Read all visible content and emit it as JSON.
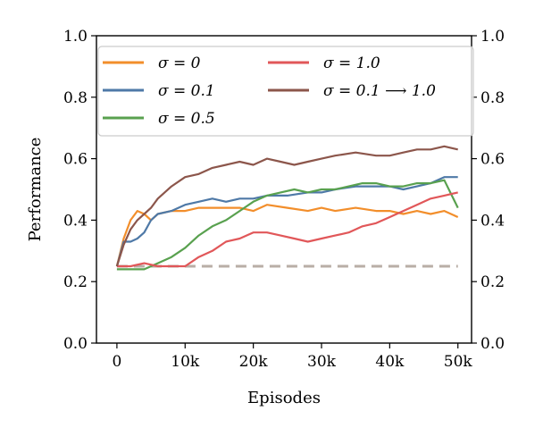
{
  "chart_data": {
    "type": "line",
    "xlabel": "Episodes",
    "ylabel": "Performance",
    "xlim": [
      -3000,
      52000
    ],
    "ylim": [
      0.0,
      1.0
    ],
    "x_ticks": [
      0,
      10000,
      20000,
      30000,
      40000,
      50000
    ],
    "x_tick_labels": [
      "0",
      "10k",
      "20k",
      "30k",
      "40k",
      "50k"
    ],
    "y_ticks": [
      0.0,
      0.2,
      0.4,
      0.6,
      0.8,
      1.0
    ],
    "y_tick_labels": [
      "0.0",
      "0.2",
      "0.4",
      "0.6",
      "0.8",
      "1.0"
    ],
    "right_y_tick_labels": [
      "0.0",
      "0.2",
      "0.4",
      "0.6",
      "0.8",
      "1.0"
    ],
    "grid": false,
    "legend_position": "top",
    "series": [
      {
        "name": "σ = 0",
        "color": "#f28e2b",
        "x": [
          0,
          1000,
          2000,
          3000,
          4000,
          5000,
          6000,
          8000,
          10000,
          12000,
          15000,
          18000,
          20000,
          22000,
          25000,
          28000,
          30000,
          32000,
          35000,
          38000,
          40000,
          42000,
          44000,
          46000,
          48000,
          50000
        ],
        "y": [
          0.25,
          0.34,
          0.4,
          0.43,
          0.42,
          0.4,
          0.42,
          0.43,
          0.43,
          0.44,
          0.44,
          0.44,
          0.43,
          0.45,
          0.44,
          0.43,
          0.44,
          0.43,
          0.44,
          0.43,
          0.43,
          0.42,
          0.43,
          0.42,
          0.43,
          0.41
        ]
      },
      {
        "name": "σ = 0.1",
        "color": "#4e79a7",
        "x": [
          0,
          1000,
          2000,
          3000,
          4000,
          5000,
          6000,
          8000,
          10000,
          12000,
          14000,
          16000,
          18000,
          20000,
          22000,
          25000,
          28000,
          30000,
          32000,
          35000,
          38000,
          40000,
          42000,
          44000,
          46000,
          48000,
          50000
        ],
        "y": [
          0.25,
          0.33,
          0.33,
          0.34,
          0.36,
          0.4,
          0.42,
          0.43,
          0.45,
          0.46,
          0.47,
          0.46,
          0.47,
          0.47,
          0.48,
          0.48,
          0.49,
          0.49,
          0.5,
          0.51,
          0.51,
          0.51,
          0.5,
          0.51,
          0.52,
          0.54,
          0.54
        ]
      },
      {
        "name": "σ = 0.5",
        "color": "#59a14f",
        "x": [
          0,
          2000,
          4000,
          6000,
          8000,
          10000,
          12000,
          14000,
          16000,
          18000,
          20000,
          22000,
          24000,
          26000,
          28000,
          30000,
          32000,
          34000,
          36000,
          38000,
          40000,
          42000,
          44000,
          46000,
          48000,
          50000
        ],
        "y": [
          0.24,
          0.24,
          0.24,
          0.26,
          0.28,
          0.31,
          0.35,
          0.38,
          0.4,
          0.43,
          0.46,
          0.48,
          0.49,
          0.5,
          0.49,
          0.5,
          0.5,
          0.51,
          0.52,
          0.52,
          0.51,
          0.51,
          0.52,
          0.52,
          0.53,
          0.44
        ]
      },
      {
        "name": "σ = 1.0",
        "color": "#e15759",
        "x": [
          0,
          2000,
          4000,
          6000,
          8000,
          10000,
          12000,
          14000,
          16000,
          18000,
          20000,
          22000,
          24000,
          26000,
          28000,
          30000,
          32000,
          34000,
          36000,
          38000,
          40000,
          42000,
          44000,
          46000,
          48000,
          50000
        ],
        "y": [
          0.25,
          0.25,
          0.26,
          0.25,
          0.25,
          0.25,
          0.28,
          0.3,
          0.33,
          0.34,
          0.36,
          0.36,
          0.35,
          0.34,
          0.33,
          0.34,
          0.35,
          0.36,
          0.38,
          0.39,
          0.41,
          0.43,
          0.45,
          0.47,
          0.48,
          0.49
        ]
      },
      {
        "name": "σ = 0.1 ⟶ 1.0",
        "color": "#8c564b",
        "x": [
          0,
          1000,
          2000,
          3000,
          4000,
          5000,
          6000,
          8000,
          10000,
          12000,
          14000,
          16000,
          18000,
          20000,
          22000,
          24000,
          26000,
          28000,
          30000,
          32000,
          35000,
          38000,
          40000,
          42000,
          44000,
          46000,
          48000,
          50000
        ],
        "y": [
          0.25,
          0.32,
          0.37,
          0.4,
          0.42,
          0.44,
          0.47,
          0.51,
          0.54,
          0.55,
          0.57,
          0.58,
          0.59,
          0.58,
          0.6,
          0.59,
          0.58,
          0.59,
          0.6,
          0.61,
          0.62,
          0.61,
          0.61,
          0.62,
          0.63,
          0.63,
          0.64,
          0.63
        ]
      }
    ],
    "baseline": {
      "y": 0.25,
      "x": [
        0,
        50000
      ],
      "style": "dashed",
      "color": "#b9aea6"
    }
  }
}
